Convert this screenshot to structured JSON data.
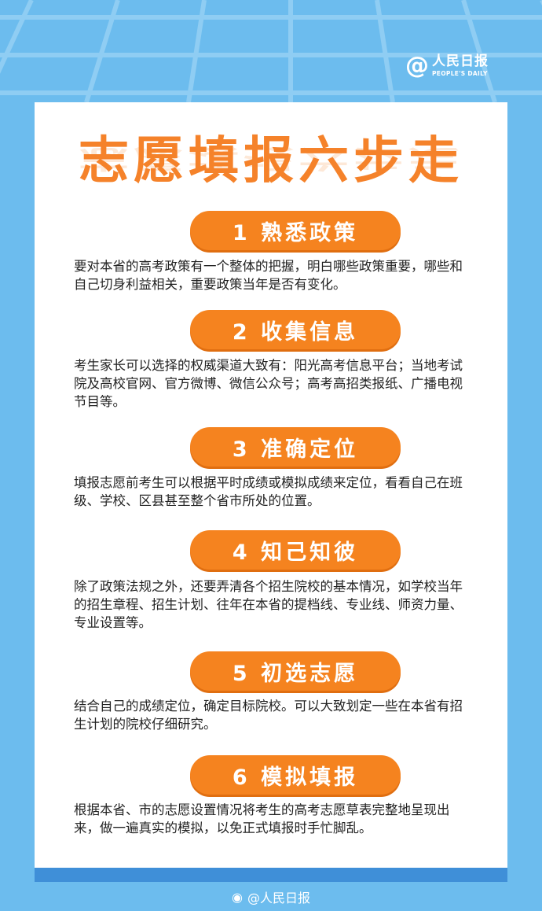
{
  "logo": {
    "at": "@",
    "name_cn": "人民日报",
    "name_en": "PEOPLE'S DAILY"
  },
  "title": "志愿填报六步走",
  "steps": [
    {
      "label": "1 熟悉政策",
      "text": "要对本省的高考政策有一个整体的把握，明白哪些政策重要，哪些和自己切身利益相关，重要政策当年是否有变化。"
    },
    {
      "label": "2 收集信息",
      "text": "考生家长可以选择的权威渠道大致有：阳光高考信息平台；当地考试院及高校官网、官方微博、微信公众号；高考高招类报纸、广播电视节目等。"
    },
    {
      "label": "3 准确定位",
      "text": "填报志愿前考生可以根据平时成绩或模拟成绩来定位，看看自己在班级、学校、区县甚至整个省市所处的位置。"
    },
    {
      "label": "4 知己知彼",
      "text": "除了政策法规之外，还要弄清各个招生院校的基本情况，如学校当年的招生章程、招生计划、往年在本省的提档线、专业线、师资力量、专业设置等。"
    },
    {
      "label": "5 初选志愿",
      "text": "结合自己的成绩定位，确定目标院校。可以大致划定一些在本省有招生计划的院校仔细研究。"
    },
    {
      "label": "6 模拟填报",
      "text": "根据本省、市的志愿设置情况将考生的高考志愿草表完整地呈现出来，做一遍真实的模拟，以免正式填报时手忙脚乱。"
    }
  ],
  "footer": {
    "watermark": "@人民日报"
  },
  "colors": {
    "background": "#6cbcee",
    "accent": "#f5831f",
    "card": "#ffffff",
    "card_bottom": "#3f8fd8"
  }
}
